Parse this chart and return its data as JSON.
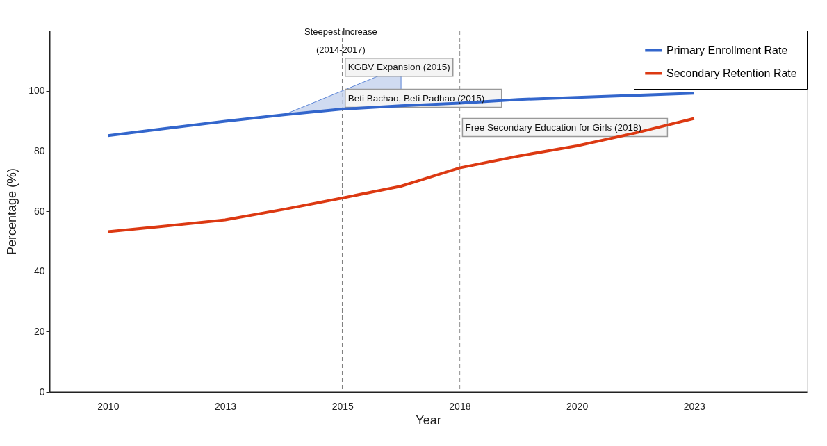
{
  "chart_data": {
    "type": "line",
    "xlabel": "Year",
    "ylabel": "Percentage (%)",
    "x": [
      2010,
      2011.3,
      2012.6,
      2013.9,
      2015.2,
      2016.5,
      2017.8,
      2019.1,
      2020.4,
      2021.7,
      2023
    ],
    "series": [
      {
        "name": "Primary Enrollment Rate",
        "color": "#3366cc",
        "values": [
          85.1,
          87.5,
          89.9,
          92.0,
          93.9,
          95.0,
          95.9,
          97.1,
          97.8,
          98.5,
          99.2
        ]
      },
      {
        "name": "Secondary Retention Rate",
        "color": "#dc3912",
        "values": [
          53.2,
          55.1,
          57.1,
          60.6,
          64.4,
          68.3,
          74.4,
          78.3,
          81.7,
          86.0,
          90.8
        ]
      }
    ],
    "xlim": [
      2008.7,
      2025.5
    ],
    "xticks": [
      {
        "value": 2010,
        "label": "2010"
      },
      {
        "value": 2012.6,
        "label": "2013"
      },
      {
        "value": 2015.2,
        "label": "2015"
      },
      {
        "value": 2017.8,
        "label": "2018"
      },
      {
        "value": 2020.4,
        "label": "2020"
      },
      {
        "value": 2023,
        "label": "2023"
      }
    ],
    "ylim": [
      0,
      120
    ],
    "yticks": [
      0,
      20,
      40,
      60,
      80,
      100
    ],
    "ref_lines": [
      {
        "axis": "x",
        "value": 2015.2,
        "label": null,
        "color": "#808080",
        "line_style": "dashed"
      },
      {
        "axis": "x",
        "value": 2017.8,
        "label": null,
        "color": "#a0a0a0",
        "line_style": "dashed"
      }
    ],
    "annotations": [
      {
        "text": "Steepest Increase\n(2014-2017)",
        "x": 2013.9,
        "y": 92.0
      },
      {
        "text": "KGBV Expansion (2015)",
        "x": 2015.2,
        "y": 107.8
      },
      {
        "text": "Beti Bachao, Beti Padhao (2015)",
        "x": 2015.2,
        "y": 97.5
      },
      {
        "text": "Free Secondary Education for Girls (2018)",
        "x": 2017.8,
        "y": 87.8
      }
    ],
    "grid": false,
    "legend": "top right",
    "marker": "none",
    "line_style": "solid"
  }
}
